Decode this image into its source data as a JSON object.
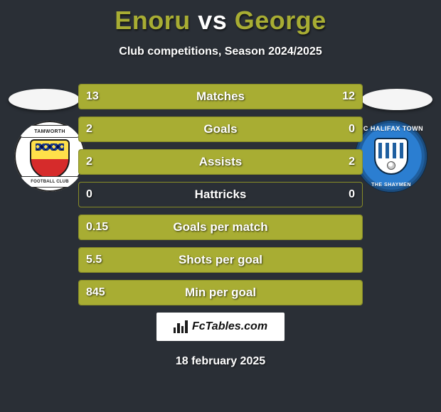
{
  "title": {
    "player1": "Enoru",
    "vs": "vs",
    "player2": "George"
  },
  "subtitle": "Club competitions, Season 2024/2025",
  "date": "18 february 2025",
  "badges": {
    "left": {
      "top_text": "TAMWORTH",
      "bottom_text": "FOOTBALL CLUB"
    },
    "right": {
      "top_text": "FC HALIFAX TOWN",
      "bottom_text": "THE SHAYMEN"
    }
  },
  "brand": {
    "text": "FcTables.com"
  },
  "colors": {
    "accent": "#a8ad33",
    "accent_border": "#878c27",
    "background": "#2a2f36",
    "text": "#ffffff"
  },
  "stats": [
    {
      "label": "Matches",
      "left_val": "13",
      "right_val": "12",
      "left_fill_pct": 52,
      "right_fill_pct": 48
    },
    {
      "label": "Goals",
      "left_val": "2",
      "right_val": "0",
      "left_fill_pct": 100,
      "right_fill_pct": 0
    },
    {
      "label": "Assists",
      "left_val": "2",
      "right_val": "2",
      "left_fill_pct": 50,
      "right_fill_pct": 50
    },
    {
      "label": "Hattricks",
      "left_val": "0",
      "right_val": "0",
      "left_fill_pct": 0,
      "right_fill_pct": 0
    },
    {
      "label": "Goals per match",
      "left_val": "0.15",
      "right_val": "",
      "left_fill_pct": 100,
      "right_fill_pct": 0
    },
    {
      "label": "Shots per goal",
      "left_val": "5.5",
      "right_val": "",
      "left_fill_pct": 100,
      "right_fill_pct": 0
    },
    {
      "label": "Min per goal",
      "left_val": "845",
      "right_val": "",
      "left_fill_pct": 100,
      "right_fill_pct": 0
    }
  ]
}
